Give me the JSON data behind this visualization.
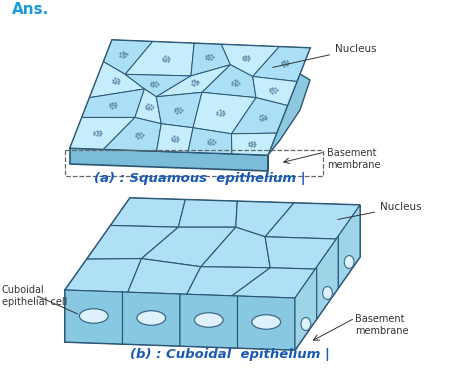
{
  "background_color": "#ffffff",
  "ans_color": "#1a9bdc",
  "annotation_color": "#333333",
  "caption_a_color": "#1a5ab5",
  "caption_b_color": "#1a5ab5",
  "cell_stroke": "#2a5575",
  "ans_text": "Ans.",
  "caption_a": "(a) : Squamous  epithelium |",
  "caption_b": "(b) : Cuboidal  epithelium |",
  "label_nucleus_a": "Nucleus",
  "label_basement_a": "Basement\nmembrane",
  "label_nucleus_b": "Nucleus",
  "label_basement_b": "Basement\nmembrane",
  "label_cuboidal": "Cuboidal\nepithelial cell",
  "sq_cell_fill": "#aadff5",
  "sq_cell_fill2": "#c5edfb",
  "sq_side_fill": "#7bbdd8",
  "sq_top_fill": "#b8e8fa",
  "cb_top_fill": "#c0eaf8",
  "cb_side_fill": "#88c8e0",
  "cb_right_fill": "#9dd4e8",
  "cb_cell_fill": "#b0e0f5",
  "nucleus_dot_color": "#4a7a9a",
  "nucleus_oval_fill": "#ddf2fc",
  "nucleus_oval_edge": "#3a6a8a"
}
